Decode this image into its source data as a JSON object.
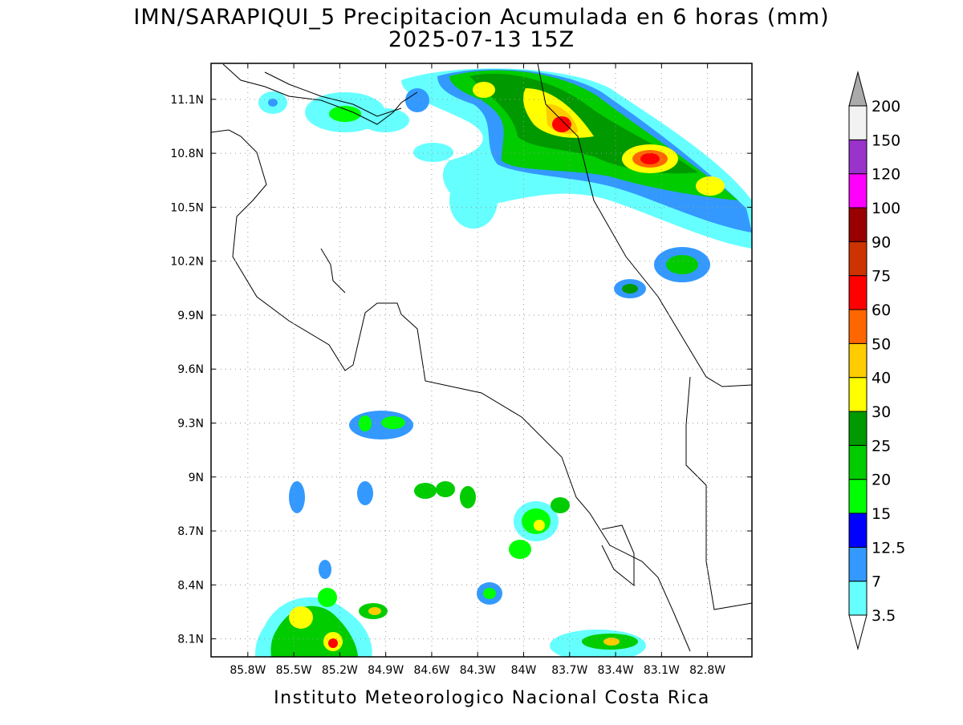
{
  "title": "IMN/SARAPIQUI_5 Precipitacion Acumulada en 6 horas (mm)",
  "subtitle": "2025-07-13 15Z",
  "footer": "Instituto Meteorologico Nacional Costa Rica",
  "map": {
    "xlim": [
      -86.04,
      -82.51
    ],
    "ylim": [
      8.0,
      11.3
    ],
    "grid": true,
    "xticks": [
      {
        "value": -85.8,
        "label": "85.8W"
      },
      {
        "value": -85.5,
        "label": "85.5W"
      },
      {
        "value": -85.2,
        "label": "85.2W"
      },
      {
        "value": -84.9,
        "label": "84.9W"
      },
      {
        "value": -84.6,
        "label": "84.6W"
      },
      {
        "value": -84.3,
        "label": "84.3W"
      },
      {
        "value": -84.0,
        "label": "84W"
      },
      {
        "value": -83.7,
        "label": "83.7W"
      },
      {
        "value": -83.4,
        "label": "83.4W"
      },
      {
        "value": -83.1,
        "label": "83.1W"
      },
      {
        "value": -82.8,
        "label": "82.8W"
      }
    ],
    "yticks": [
      {
        "value": 8.1,
        "label": "8.1N"
      },
      {
        "value": 8.4,
        "label": "8.4N"
      },
      {
        "value": 8.7,
        "label": "8.7N"
      },
      {
        "value": 9.0,
        "label": "9N"
      },
      {
        "value": 9.3,
        "label": "9.3N"
      },
      {
        "value": 9.6,
        "label": "9.6N"
      },
      {
        "value": 9.9,
        "label": "9.9N"
      },
      {
        "value": 10.2,
        "label": "10.2N"
      },
      {
        "value": 10.5,
        "label": "10.5N"
      },
      {
        "value": 10.8,
        "label": "10.8N"
      },
      {
        "value": 11.1,
        "label": "11.1N"
      }
    ]
  },
  "colorbar": {
    "levels": [
      3.5,
      7,
      12.5,
      15,
      20,
      25,
      30,
      40,
      50,
      60,
      75,
      90,
      100,
      120,
      150,
      200
    ],
    "colors": [
      "#ffffff",
      "#66ffff",
      "#3399ff",
      "#0000ff",
      "#00ff00",
      "#00cc00",
      "#009900",
      "#ffff00",
      "#ffcc00",
      "#ff6600",
      "#ff0000",
      "#cc3300",
      "#990000",
      "#ff00ff",
      "#9933cc",
      "#f2f2f2",
      "#aaaaaa"
    ]
  }
}
